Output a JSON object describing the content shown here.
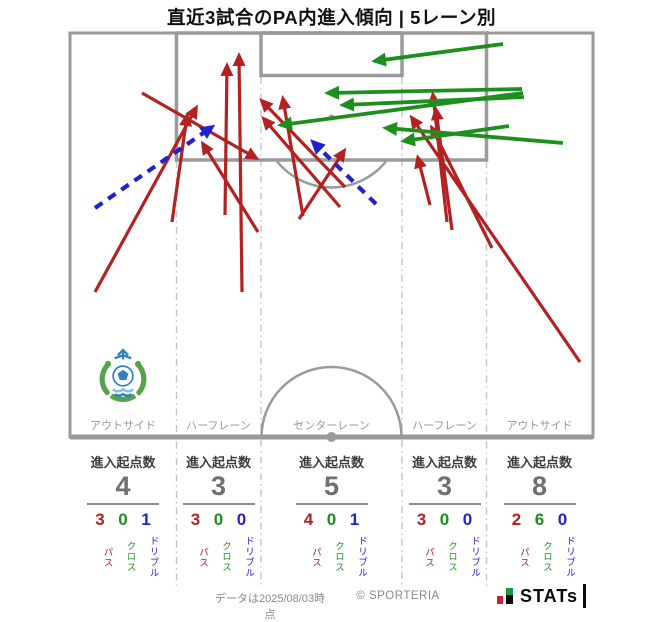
{
  "title": "直近3試合のPA内進入傾向 | 5レーン別",
  "stat_header": "進入起点数",
  "lanes": [
    {
      "label": "アウトサイド",
      "entries": "4",
      "pass": "3",
      "cross": "0",
      "dribble": "1"
    },
    {
      "label": "ハーフレーン",
      "entries": "3",
      "pass": "3",
      "cross": "0",
      "dribble": "0"
    },
    {
      "label": "センターレーン",
      "entries": "5",
      "pass": "4",
      "cross": "0",
      "dribble": "1"
    },
    {
      "label": "ハーフレーン",
      "entries": "3",
      "pass": "3",
      "cross": "0",
      "dribble": "0"
    },
    {
      "label": "アウトサイド",
      "entries": "8",
      "pass": "2",
      "cross": "6",
      "dribble": "0"
    }
  ],
  "legend_labels": {
    "pass": "パス",
    "cross": "クロス",
    "dribble": "ドリブル"
  },
  "colors": {
    "pass": "#b22222",
    "cross": "#1e8f1e",
    "dribble": "#2222cc",
    "pitch_line": "#9a9a9a",
    "lane_divider": "#c4c4c4"
  },
  "footer": {
    "data_note": "データは2025/08/03時点",
    "copyright": "© SPORTERIA",
    "logo_text": "STATs"
  },
  "chart_data": {
    "type": "scatter",
    "title": "直近3試合のPA内進入傾向 | 5レーン別",
    "pitch_extent": {
      "x": [
        70,
        593
      ],
      "y": [
        33,
        437
      ]
    },
    "lane_boundaries_x": [
      70,
      176.5,
      261,
      402,
      486.5,
      593
    ],
    "legend": [
      {
        "kind": "pass",
        "label": "パス",
        "color": "#b22222",
        "width": 3.2
      },
      {
        "kind": "cross",
        "label": "クロス",
        "color": "#1e8f1e",
        "width": 3.8
      },
      {
        "kind": "dribble",
        "label": "ドリブル",
        "color": "#2222cc",
        "width": 4.2
      }
    ],
    "arrows": [
      {
        "kind": "pass",
        "from": [
          95,
          292
        ],
        "to": [
          196,
          108
        ]
      },
      {
        "kind": "pass",
        "from": [
          142,
          93
        ],
        "to": [
          256,
          158
        ]
      },
      {
        "kind": "pass",
        "from": [
          172,
          222
        ],
        "to": [
          187,
          116
        ]
      },
      {
        "kind": "pass",
        "from": [
          225,
          215
        ],
        "to": [
          227,
          66
        ]
      },
      {
        "kind": "pass",
        "from": [
          242,
          292
        ],
        "to": [
          239,
          56
        ]
      },
      {
        "kind": "pass",
        "from": [
          258,
          232
        ],
        "to": [
          203,
          144
        ]
      },
      {
        "kind": "pass",
        "from": [
          345,
          187
        ],
        "to": [
          262,
          101
        ]
      },
      {
        "kind": "pass",
        "from": [
          340,
          207
        ],
        "to": [
          264,
          119
        ]
      },
      {
        "kind": "pass",
        "from": [
          299,
          219
        ],
        "to": [
          344,
          151
        ]
      },
      {
        "kind": "pass",
        "from": [
          303,
          216
        ],
        "to": [
          283,
          99
        ]
      },
      {
        "kind": "pass",
        "from": [
          430,
          205
        ],
        "to": [
          418,
          158
        ]
      },
      {
        "kind": "pass",
        "from": [
          447,
          222
        ],
        "to": [
          433,
          95
        ]
      },
      {
        "kind": "pass",
        "from": [
          452,
          230
        ],
        "to": [
          436,
          110
        ]
      },
      {
        "kind": "pass",
        "from": [
          580,
          362
        ],
        "to": [
          412,
          118
        ]
      },
      {
        "kind": "pass",
        "from": [
          492,
          248
        ],
        "to": [
          432,
          128
        ]
      },
      {
        "kind": "cross",
        "from": [
          503,
          44
        ],
        "to": [
          375,
          61
        ]
      },
      {
        "kind": "cross",
        "from": [
          522,
          89
        ],
        "to": [
          328,
          93
        ]
      },
      {
        "kind": "cross",
        "from": [
          524,
          97
        ],
        "to": [
          343,
          105
        ]
      },
      {
        "kind": "cross",
        "from": [
          523,
          93
        ],
        "to": [
          281,
          125
        ]
      },
      {
        "kind": "cross",
        "from": [
          563,
          143
        ],
        "to": [
          386,
          128
        ]
      },
      {
        "kind": "cross",
        "from": [
          509,
          126
        ],
        "to": [
          404,
          141
        ]
      },
      {
        "kind": "dribble",
        "from": [
          95,
          208
        ],
        "to": [
          212,
          127
        ]
      },
      {
        "kind": "dribble",
        "from": [
          376,
          204
        ],
        "to": [
          313,
          142
        ]
      }
    ]
  }
}
